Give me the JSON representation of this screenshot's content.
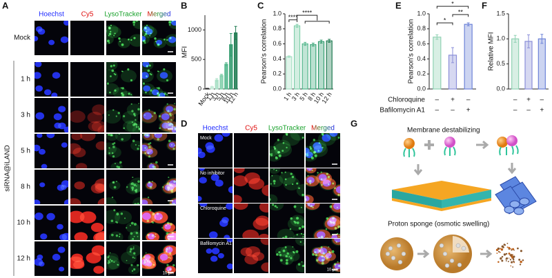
{
  "panel_labels": [
    "A",
    "B",
    "C",
    "D",
    "E",
    "F",
    "G"
  ],
  "panel_a": {
    "channels": [
      "Hoechst",
      "Cy5",
      "LysoTracker",
      "Merged"
    ],
    "rows": [
      "Mock",
      "1 h",
      "3 h",
      "5 h",
      "8 h",
      "10 h",
      "12 h"
    ],
    "group_label": "siRNA@iLAND",
    "scale_bar": "10 μm"
  },
  "panel_d": {
    "channels": [
      "Hoechst",
      "Cy5",
      "LysoTracker",
      "Merged"
    ],
    "rows": [
      "Mock",
      "No inhibitor",
      "Chloroquine",
      "Bafilomycin A1"
    ],
    "scale_bar": "10 μm"
  },
  "panel_g": {
    "heading_1": "Membrane destabilizing",
    "heading_2": "Proton sponge (osmotic swelling)"
  },
  "chart_data": [
    {
      "type": "bar",
      "y_label": "MFI",
      "categories": [
        "Mock",
        "1 h",
        "3 h",
        "5 h",
        "8 h",
        "10 h",
        "12 h"
      ],
      "values": [
        8,
        35,
        150,
        230,
        420,
        750,
        950
      ],
      "errors": [
        4,
        10,
        25,
        20,
        25,
        190,
        110
      ],
      "colors": [
        "#222222",
        "#c6ebd9",
        "#a6dfc4",
        "#80cfaa",
        "#4fb589",
        "#2f9a6c",
        "#1d7a50"
      ],
      "ylim": [
        0,
        1250
      ],
      "yticks": [
        0,
        500,
        1000
      ]
    },
    {
      "type": "bar",
      "y_label": "Pearson's correlation",
      "categories": [
        "1 h",
        "3 h",
        "5 h",
        "8 h",
        "10 h",
        "12 h"
      ],
      "values": [
        0.43,
        0.84,
        0.6,
        0.59,
        0.63,
        0.64
      ],
      "errors": [
        0.01,
        0.02,
        0.02,
        0.02,
        0.02,
        0.02
      ],
      "colors": [
        "#a6dfc4",
        "#80cfaa",
        "#4fb589",
        "#3aa577",
        "#2f9a6c",
        "#1d7a50"
      ],
      "ylim": [
        0,
        1
      ],
      "yticks": [
        {
          "value": 0,
          "label": "0.0"
        },
        {
          "value": 0.2,
          "label": "0.2"
        },
        {
          "value": 0.4,
          "label": "0.4"
        },
        {
          "value": 0.6,
          "label": "0.6"
        },
        {
          "value": 0.8,
          "label": "0.8"
        },
        {
          "value": 1,
          "label": "1.0"
        }
      ],
      "annotations": [
        "****",
        "****"
      ]
    },
    {
      "type": "bar",
      "y_label": "Pearson's correlation",
      "conditions": [
        {
          "name": "Chloroquine",
          "signs": [
            "–",
            "+",
            "–"
          ]
        },
        {
          "name": "Bafilomycin A1",
          "signs": [
            "–",
            "–",
            "+"
          ]
        }
      ],
      "values": [
        0.69,
        0.45,
        0.86
      ],
      "errors": [
        0.03,
        0.1,
        0.02
      ],
      "colors": [
        "#8fd1b3",
        "#8a8ed8",
        "#6d83d8"
      ],
      "ylim": [
        0,
        1
      ],
      "yticks": [
        {
          "value": 0,
          "label": "0.0"
        },
        {
          "value": 0.2,
          "label": "0.2"
        },
        {
          "value": 0.4,
          "label": "0.4"
        },
        {
          "value": 0.6,
          "label": "0.6"
        },
        {
          "value": 0.8,
          "label": "0.8"
        },
        {
          "value": 1,
          "label": "1.0"
        }
      ],
      "annotations": [
        "*",
        "**",
        "*"
      ]
    },
    {
      "type": "bar",
      "y_label": "Relative MFI",
      "conditions": [
        {
          "signs": [
            "–",
            "+",
            "–"
          ]
        },
        {
          "signs": [
            "–",
            "–",
            "+"
          ]
        }
      ],
      "values": [
        1,
        0.95,
        1
      ],
      "errors": [
        0.07,
        0.13,
        0.09
      ],
      "colors": [
        "#8fd1b3",
        "#8a8ed8",
        "#6d83d8"
      ],
      "ylim": [
        0,
        1.5
      ],
      "yticks": [
        {
          "value": 0,
          "label": "0.0"
        },
        {
          "value": 0.5,
          "label": "0.5"
        },
        {
          "value": 1,
          "label": "1.0"
        },
        {
          "value": 1.5,
          "label": "1.5"
        }
      ]
    }
  ]
}
